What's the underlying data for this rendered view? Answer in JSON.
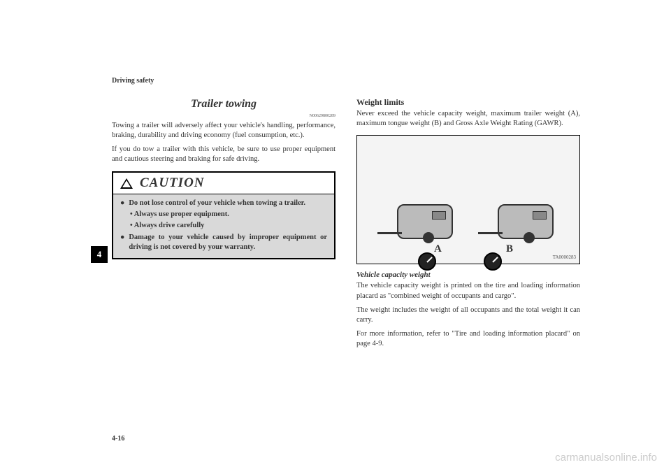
{
  "header": "Driving safety",
  "chapterNumber": "4",
  "pageNumber": "4-16",
  "leftColumn": {
    "title": "Trailer towing",
    "refCode": "N00629800289",
    "para1": "Towing a trailer will adversely affect your vehicle's handling, performance, braking, durability and driving economy (fuel consumption, etc.).",
    "para2": "If you do tow a trailer with this vehicle, be sure to use proper equipment and cautious steering and braking for safe driving.",
    "cautionTitle": "CAUTION",
    "cautionItems": {
      "item1": "Do not lose control of your vehicle when towing a trailer.",
      "sub1": "• Always use proper equipment.",
      "sub2": "• Always drive carefully",
      "item2": "Damage to your vehicle caused by improper equipment or driving is not covered by your warranty."
    }
  },
  "rightColumn": {
    "subtitle": "Weight limits",
    "para1": "Never exceed the vehicle capacity weight, maximum trailer weight (A), maximum tongue weight (B) and Gross Axle Weight Rating (GAWR).",
    "figLabelA": "A",
    "figLabelB": "B",
    "figCode": "TA0000283",
    "italicTitle": "Vehicle capacity weight",
    "para2": "The vehicle capacity weight is printed on the tire and loading information placard as \"combined weight of occupants and cargo\".",
    "para3": "The weight includes the weight of all occupants and the total weight it can carry.",
    "para4": "For more information, refer to \"Tire and loading information placard\" on page 4-9."
  },
  "watermark": "carmanualsonline.info"
}
